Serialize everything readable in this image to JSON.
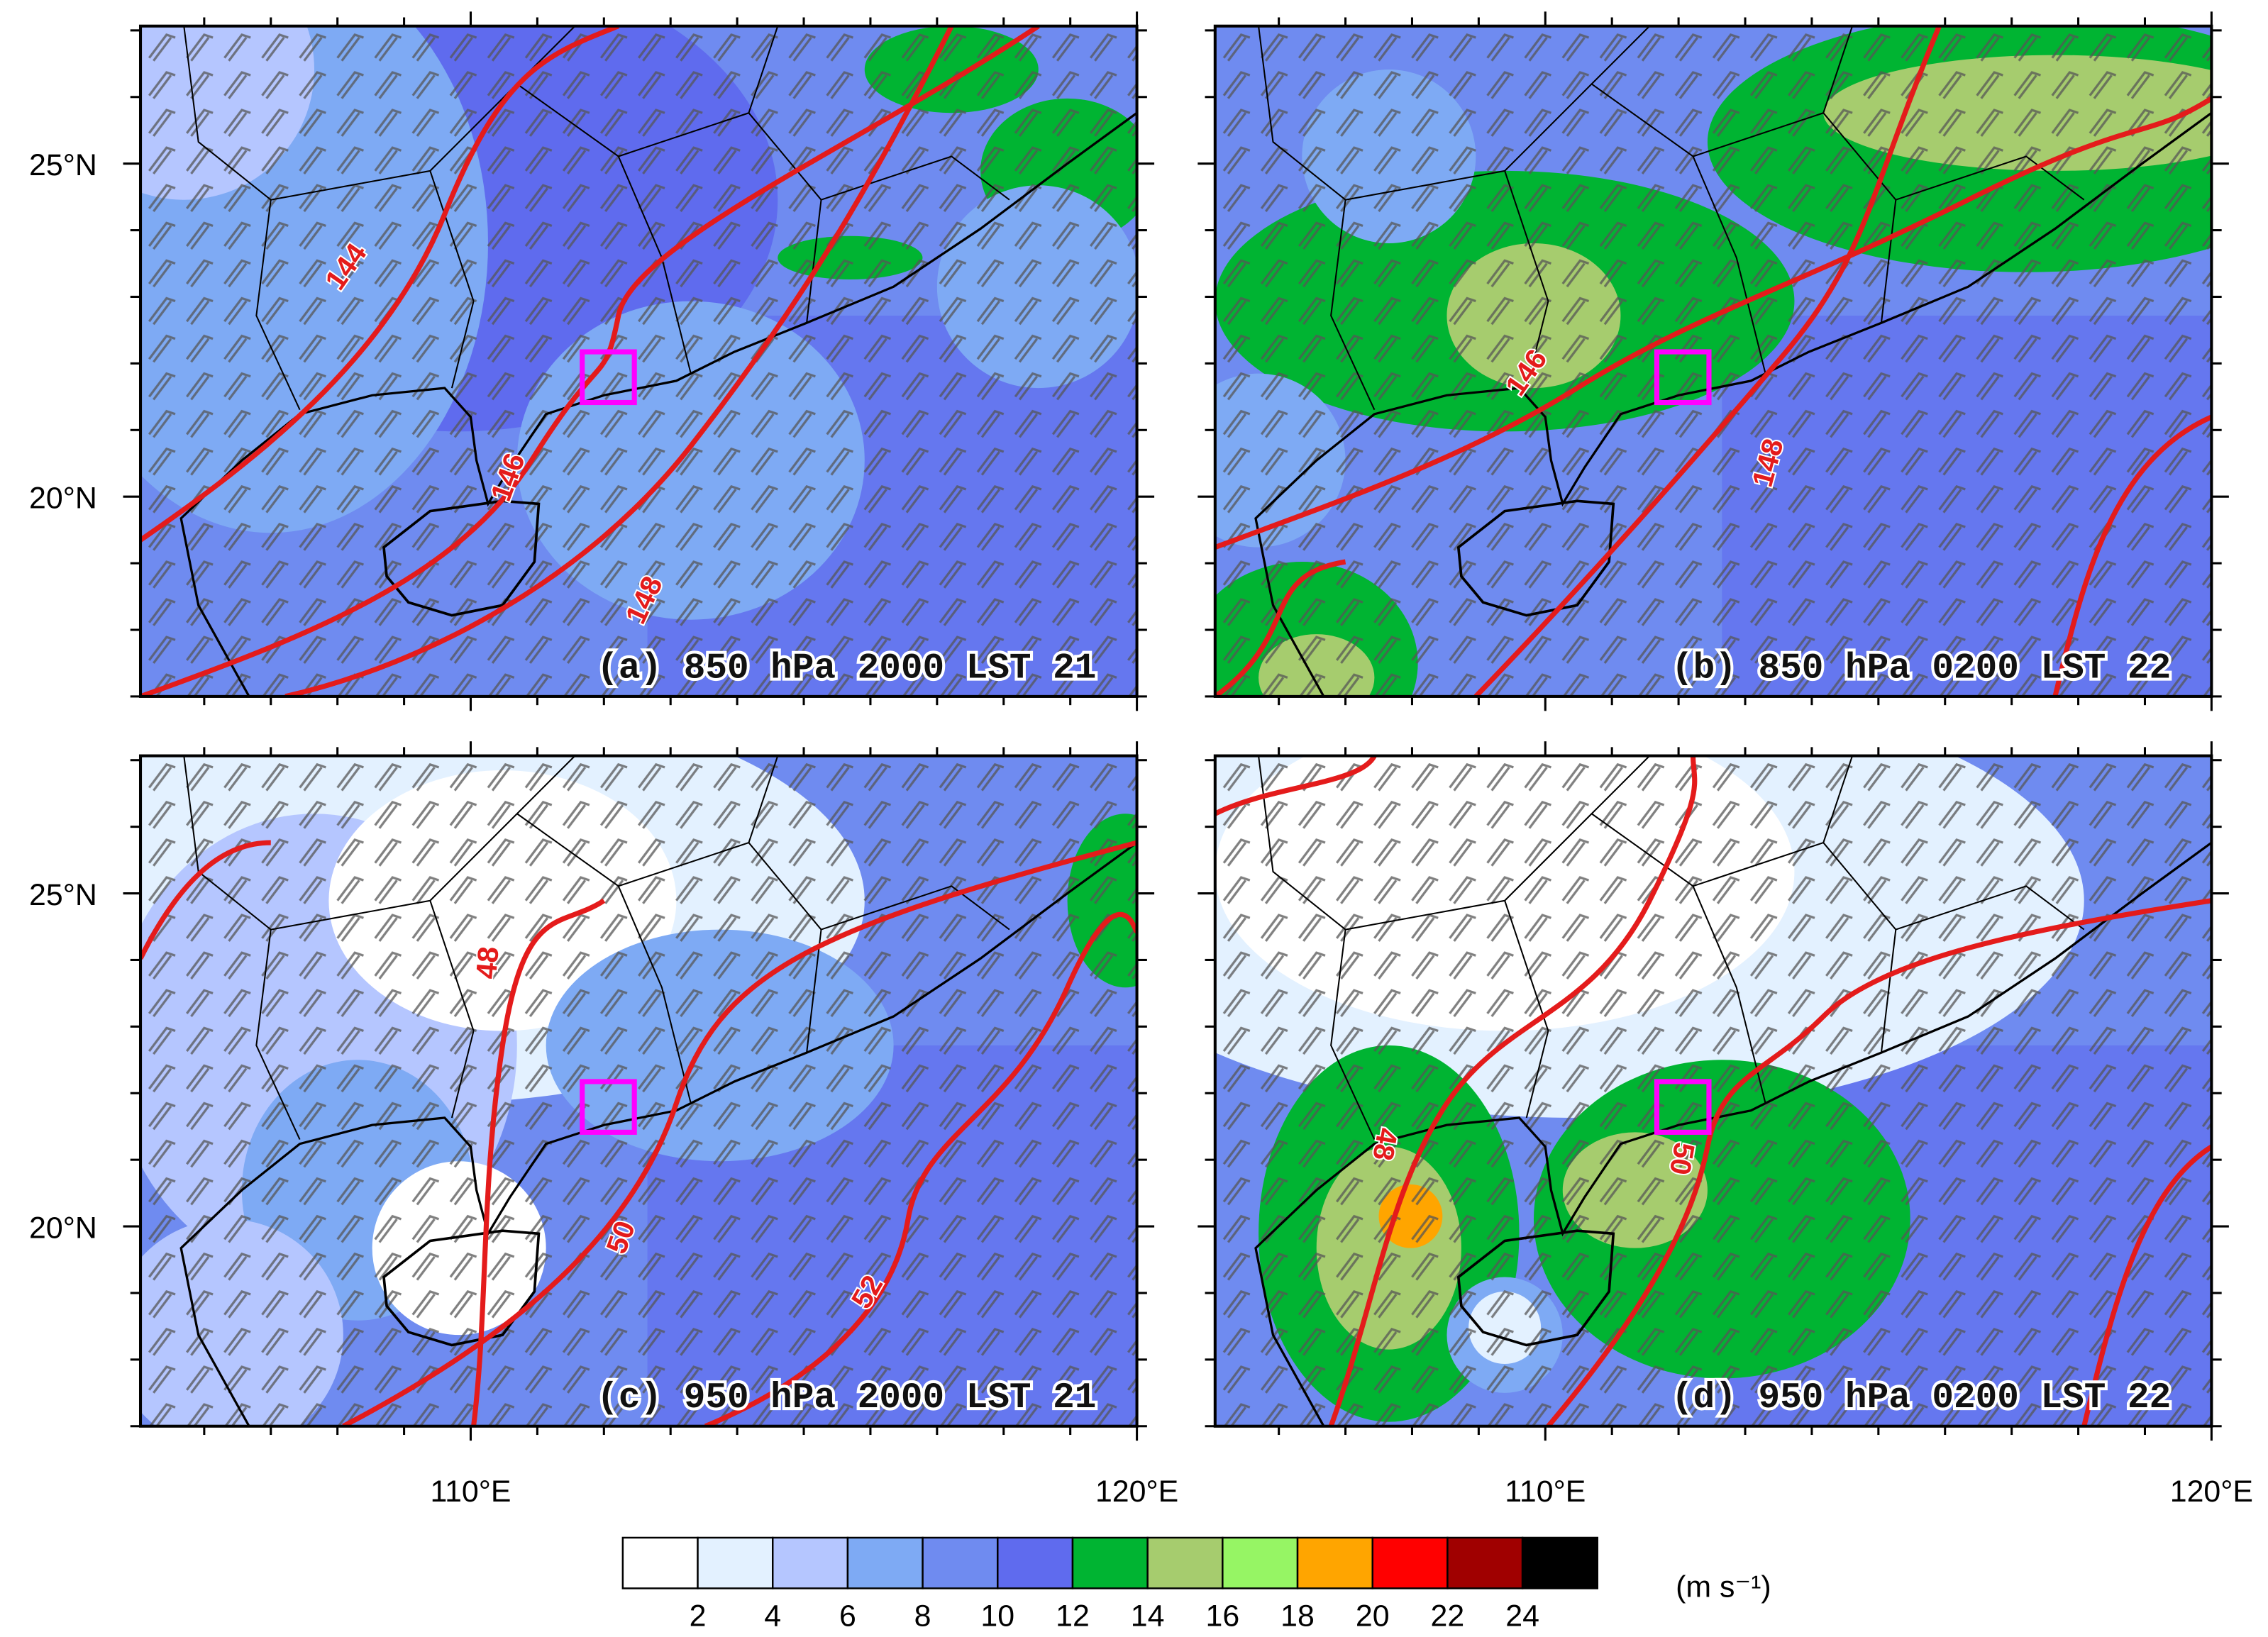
{
  "panels": [
    {
      "label": "(a) 850 hPa 2000 LST 21",
      "contour_labels": [
        "144",
        "146",
        "148"
      ]
    },
    {
      "label": "(b) 850 hPa 0200 LST 22",
      "contour_labels": [
        "146",
        "148"
      ]
    },
    {
      "label": "(c) 950 hPa 2000 LST 21",
      "contour_labels": [
        "48",
        "50",
        "52"
      ]
    },
    {
      "label": "(d) 950 hPa 0200 LST 22",
      "contour_labels": [
        "48",
        "50"
      ]
    }
  ],
  "lat_labels": [
    "25°N",
    "20°N"
  ],
  "lon_labels": [
    "110°E",
    "120°E"
  ],
  "colorbar": {
    "colors": [
      "#ffffff",
      "#e3f1ff",
      "#b5c6ff",
      "#7eaaf4",
      "#6f8bf0",
      "#5f6bee",
      "#00b432",
      "#a6cc6e",
      "#96f564",
      "#ffa500",
      "#ff0000",
      "#a00000",
      "#000000"
    ],
    "levels": [
      2,
      4,
      6,
      8,
      10,
      12,
      14,
      16,
      18,
      20,
      22,
      24
    ],
    "unit": "(m s⁻¹)"
  }
}
